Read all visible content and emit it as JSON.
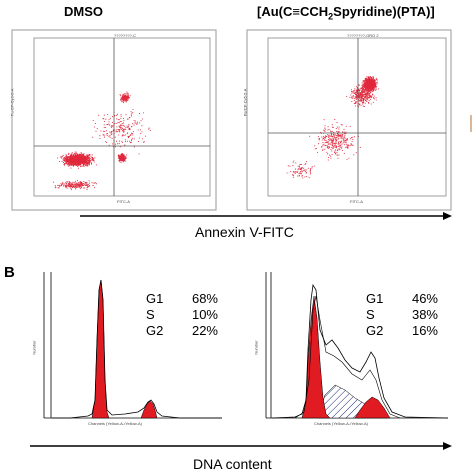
{
  "panel_a": {
    "left_title": "DMSO",
    "right_title": "[Au(C≡CCH",
    "right_title_sub": "2",
    "right_title_tail": "Spyridine)(PTA)]",
    "x_axis_caption": "Annexin V-FITC",
    "plots": [
      {
        "header": "????????-C",
        "y_label": "PerCP-Cy5-5-A",
        "x_label": "FITC-A",
        "gates": [
          "G1",
          "G2",
          "G3",
          "G4"
        ]
      },
      {
        "header": "????????-ORO 2",
        "y_label": "PerCP-Cy5-5-A",
        "x_label": "FITC-A",
        "gates": [
          "G1",
          "G2",
          "G3",
          "G4"
        ]
      }
    ]
  },
  "panel_b": {
    "letter": "B",
    "x_axis_caption": "DNA content",
    "hist_x_label": "Channels (Yellow-A-/Yellow-A)",
    "hist_y_label": "Number",
    "left_stats": [
      {
        "phase": "G1",
        "value": "68%"
      },
      {
        "phase": "S",
        "value": "10%"
      },
      {
        "phase": "G2",
        "value": "22%"
      }
    ],
    "right_stats": [
      {
        "phase": "G1",
        "value": "46%"
      },
      {
        "phase": "S",
        "value": "38%"
      },
      {
        "phase": "G2",
        "value": "16%"
      }
    ]
  },
  "colors": {
    "dots": "#e0283c",
    "fill": "#e11b22",
    "axis": "#000000"
  }
}
